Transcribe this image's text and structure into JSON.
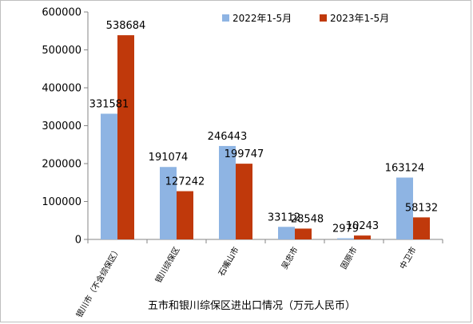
{
  "chart_data": {
    "type": "bar",
    "title": "",
    "xlabel": "五市和银川综保区进出口情况（万元人民币）",
    "ylabel": "",
    "ylim": [
      0,
      600000
    ],
    "yticks": [
      "0",
      "100000",
      "200000",
      "300000",
      "400000",
      "500000",
      "600000"
    ],
    "categories": [
      "银川市（不含综保区）",
      "银川综保区",
      "石嘴山市",
      "吴忠市",
      "固原市",
      "中卫市"
    ],
    "series": [
      {
        "name": "2022年1-5月",
        "color": "#8eb4e3",
        "values": [
          331581,
          191074,
          246443,
          33112,
          2979,
          163124
        ]
      },
      {
        "name": "2023年1-5月",
        "color": "#c0390b",
        "values": [
          538684,
          127242,
          199747,
          28548,
          10243,
          58132
        ]
      }
    ],
    "legend_position": "top-right",
    "grid": false
  }
}
